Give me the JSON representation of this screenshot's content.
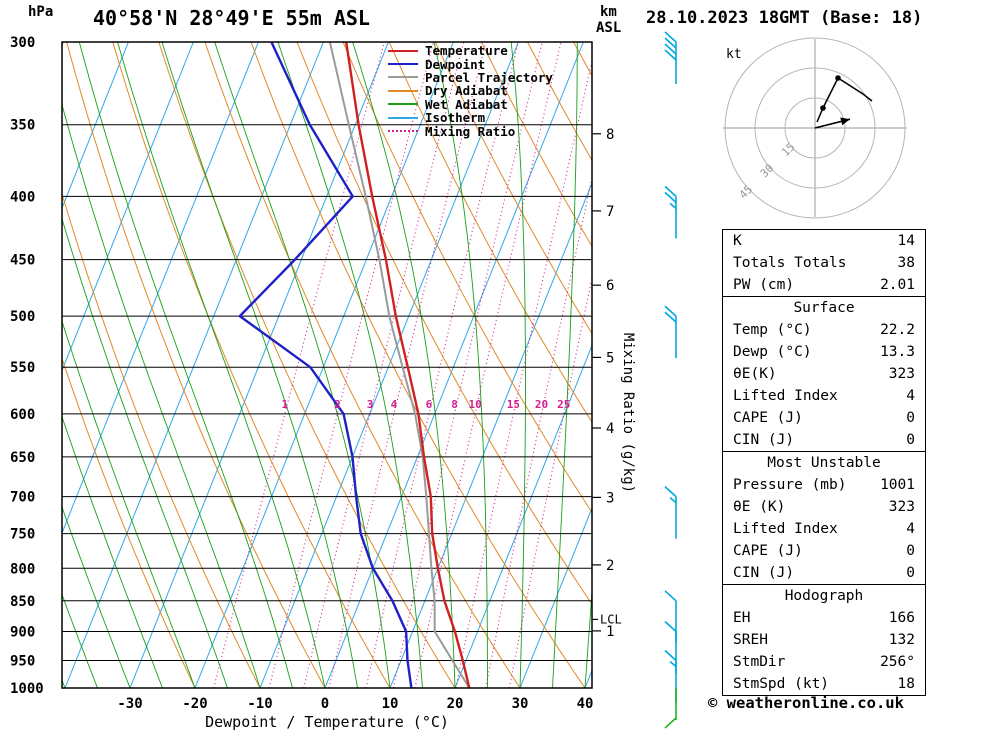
{
  "header": {
    "station": "40°58'N 28°49'E 55m ASL",
    "datetime": "28.10.2023 18GMT (Base: 18)"
  },
  "axes": {
    "pressure_unit": "hPa",
    "km_label_1": "km",
    "km_label_2": "ASL",
    "x_title": "Dewpoint / Temperature (°C)",
    "mixing_ratio_title": "Mixing Ratio (g/kg)",
    "lcl_label": "LCL",
    "lcl_pressure": 880,
    "pressure_ticks": [
      300,
      350,
      400,
      450,
      500,
      550,
      600,
      650,
      700,
      750,
      800,
      850,
      900,
      950,
      1000
    ],
    "temp_ticks": [
      -30,
      -20,
      -10,
      0,
      10,
      20,
      30,
      40
    ],
    "km_ticks": [
      {
        "km": 1,
        "p": 899
      },
      {
        "km": 2,
        "p": 795
      },
      {
        "km": 3,
        "p": 701
      },
      {
        "km": 4,
        "p": 616
      },
      {
        "km": 5,
        "p": 540
      },
      {
        "km": 6,
        "p": 472
      },
      {
        "km": 7,
        "p": 411
      },
      {
        "km": 8,
        "p": 356
      }
    ]
  },
  "legend": [
    {
      "label": "Temperature",
      "color": "#d02020",
      "dash": ""
    },
    {
      "label": "Dewpoint",
      "color": "#2020c8",
      "dash": ""
    },
    {
      "label": "Parcel Trajectory",
      "color": "#9a9a9a",
      "dash": ""
    },
    {
      "label": "Dry Adiabat",
      "color": "#e08a28",
      "dash": ""
    },
    {
      "label": "Wet Adiabat",
      "color": "#18a018",
      "dash": ""
    },
    {
      "label": "Isotherm",
      "color": "#32a8e6",
      "dash": ""
    },
    {
      "label": "Mixing Ratio",
      "color": "#d02090",
      "dash": "dotted"
    }
  ],
  "chart_data": {
    "type": "line",
    "title": "Skew-T log-P sounding 40°58'N 28°49'E 55m ASL 28.10.2023 18GMT",
    "x_axis": {
      "label": "Dewpoint / Temperature (°C)",
      "min": -40,
      "max": 40
    },
    "y_axis": {
      "label": "hPa",
      "min": 300,
      "max": 1000,
      "scale": "log"
    },
    "sounding": {
      "pressure_hpa": [
        1000,
        950,
        900,
        850,
        800,
        750,
        700,
        650,
        600,
        550,
        500,
        450,
        400,
        350,
        300
      ],
      "temperature_c": [
        22.2,
        19.5,
        16.5,
        13,
        10,
        7,
        4.5,
        1,
        -2.5,
        -7,
        -12,
        -17,
        -23,
        -29.5,
        -36.5
      ],
      "dewpoint_c": [
        13.3,
        11,
        9,
        5,
        0,
        -4,
        -7,
        -10,
        -14,
        -22,
        -36,
        -31,
        -26,
        -37,
        -48
      ],
      "parcel_c": [
        22.2,
        17.9,
        13.4,
        11.5,
        9,
        6.5,
        3.8,
        0.8,
        -3,
        -7.8,
        -13,
        -18,
        -24,
        -31,
        -39
      ]
    },
    "mixing_ratio_lines_gkg": [
      1,
      2,
      3,
      4,
      6,
      8,
      10,
      15,
      20,
      25
    ],
    "isotherms_c": {
      "min": -120,
      "max": 40,
      "step": 10
    },
    "dry_adiabats_c": {
      "min": -20,
      "max": 140,
      "step": 10
    },
    "wet_adiabats_c": {
      "min": -60,
      "max": 40,
      "step": 5
    },
    "wind_barbs": [
      {
        "pressure_hpa": 300,
        "speed_kt": 40,
        "color": "#00a8e0",
        "flip": false
      },
      {
        "pressure_hpa": 400,
        "speed_kt": 25,
        "color": "#00a8e0",
        "flip": false
      },
      {
        "pressure_hpa": 500,
        "speed_kt": 20,
        "color": "#00a8e0",
        "flip": false
      },
      {
        "pressure_hpa": 700,
        "speed_kt": 15,
        "color": "#00a8e0",
        "flip": false
      },
      {
        "pressure_hpa": 850,
        "speed_kt": 10,
        "color": "#00a8e0",
        "flip": false
      },
      {
        "pressure_hpa": 900,
        "speed_kt": 10,
        "color": "#00a8e0",
        "flip": false
      },
      {
        "pressure_hpa": 950,
        "speed_kt": 15,
        "color": "#00a8e0",
        "flip": false
      },
      {
        "pressure_hpa": 1000,
        "speed_kt": 10,
        "color": "#22b422",
        "flip": true
      }
    ]
  },
  "hodograph": {
    "unit_label": "kt",
    "rings_kt": [
      15,
      30,
      45
    ],
    "trace_kt_uv": [
      [
        1,
        3
      ],
      [
        4,
        10
      ],
      [
        11.5,
        25
      ],
      [
        24,
        17
      ],
      [
        28.5,
        13.5
      ]
    ],
    "dot_indices": [
      1,
      2
    ],
    "storm_motion_uv": [
      17.5,
      4.4
    ]
  },
  "tables": {
    "panels": [
      {
        "title": "",
        "rows": [
          [
            "K",
            "14"
          ],
          [
            "Totals Totals",
            "38"
          ],
          [
            "PW (cm)",
            "2.01"
          ]
        ]
      },
      {
        "title": "Surface",
        "rows": [
          [
            "Temp (°C)",
            "22.2"
          ],
          [
            "Dewp (°C)",
            "13.3"
          ],
          [
            "θE(K)",
            "323"
          ],
          [
            "Lifted Index",
            "4"
          ],
          [
            "CAPE (J)",
            "0"
          ],
          [
            "CIN (J)",
            "0"
          ]
        ]
      },
      {
        "title": "Most Unstable",
        "rows": [
          [
            "Pressure (mb)",
            "1001"
          ],
          [
            "θE (K)",
            "323"
          ],
          [
            "Lifted Index",
            "4"
          ],
          [
            "CAPE (J)",
            "0"
          ],
          [
            "CIN (J)",
            "0"
          ]
        ]
      },
      {
        "title": "Hodograph",
        "rows": [
          [
            "EH",
            "166"
          ],
          [
            "SREH",
            "132"
          ],
          [
            "StmDir",
            "256°"
          ],
          [
            "StmSpd (kt)",
            "18"
          ]
        ]
      }
    ]
  },
  "footer": {
    "copyright": "© weatheronline.co.uk"
  }
}
